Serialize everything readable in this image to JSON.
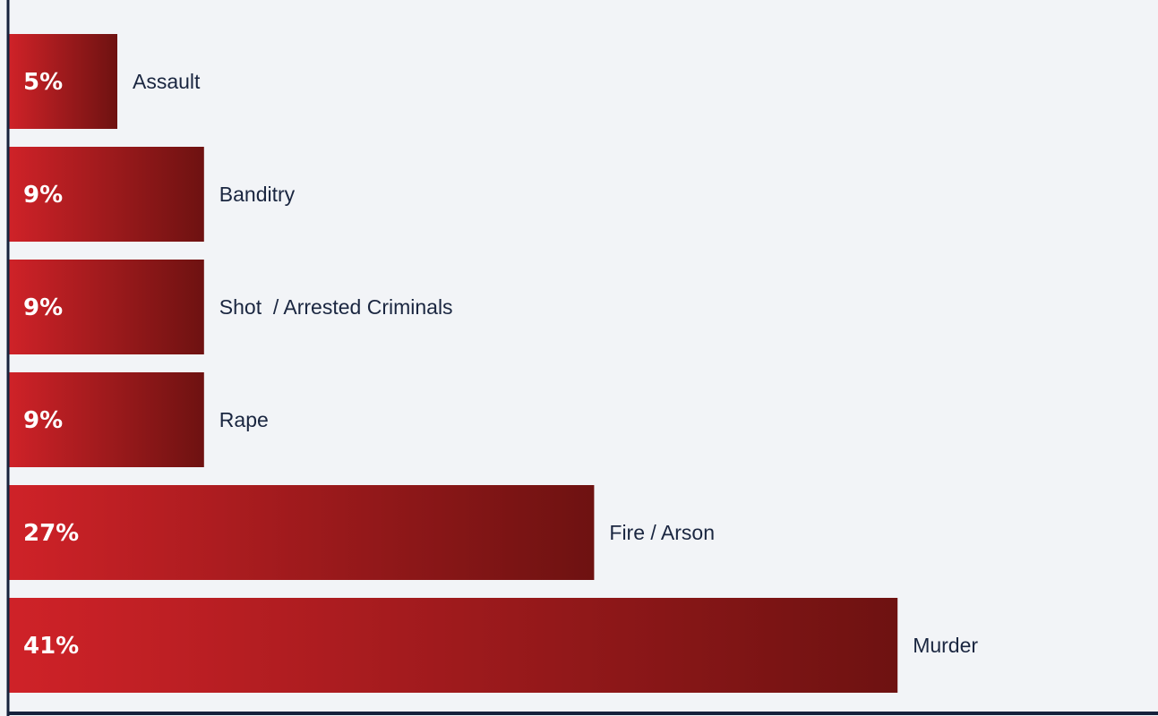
{
  "chart_data": {
    "type": "bar",
    "orientation": "horizontal",
    "categories": [
      "Assault",
      "Banditry",
      "Shot  / Arrested Criminals",
      "Rape",
      "Fire / Arson",
      "Murder"
    ],
    "values": [
      5,
      9,
      9,
      9,
      27,
      41
    ],
    "value_labels": [
      "5%",
      "9%",
      "9%",
      "9%",
      "27%",
      "41%"
    ],
    "unit": "%",
    "grid": false,
    "legend": "none",
    "colors": {
      "bar_start": "#cf2228",
      "bar_end": "#6e1211",
      "axis": "#16223c",
      "background": "#f2f4f7"
    }
  }
}
